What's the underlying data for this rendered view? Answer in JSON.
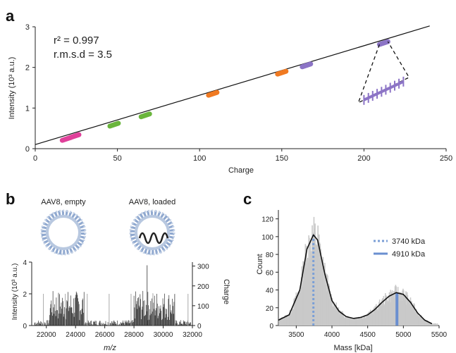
{
  "chart_data": [
    {
      "panel": "a",
      "type": "scatter",
      "xlabel": "Charge",
      "ylabel": "Intensity (10³ a.u.)",
      "xlim": [
        0,
        250
      ],
      "ylim": [
        0,
        3
      ],
      "xticks": [
        0,
        50,
        100,
        150,
        200,
        250
      ],
      "yticks": [
        0,
        1,
        2,
        3
      ],
      "annotations": [
        "r² = 0.997",
        "r.m.s.d = 3.5"
      ],
      "fit_line": {
        "x": [
          0,
          240
        ],
        "y": [
          0.1,
          3.02
        ]
      },
      "series": [
        {
          "color": "#e0409a",
          "points": [
            {
              "x": 19,
              "y": 0.24
            },
            {
              "x": 24,
              "y": 0.31
            }
          ]
        },
        {
          "color": "#6ab53c",
          "points": [
            {
              "x": 48,
              "y": 0.59
            },
            {
              "x": 67,
              "y": 0.82
            }
          ]
        },
        {
          "color": "#f07a22",
          "points": [
            {
              "x": 108,
              "y": 1.35
            },
            {
              "x": 150,
              "y": 1.87
            }
          ]
        },
        {
          "color": "#8c74c6",
          "points": [
            {
              "x": 165,
              "y": 2.05
            },
            {
              "x": 212,
              "y": 2.6
            }
          ]
        }
      ],
      "inset": {
        "color": "#8c74c6",
        "points": [
          {
            "x": 200,
            "y": 1.2
          },
          {
            "x": 202.7,
            "y": 1.25
          },
          {
            "x": 205.3,
            "y": 1.3
          },
          {
            "x": 208,
            "y": 1.35
          },
          {
            "x": 210.7,
            "y": 1.4
          },
          {
            "x": 213.3,
            "y": 1.45
          },
          {
            "x": 216,
            "y": 1.5
          },
          {
            "x": 218.7,
            "y": 1.55
          },
          {
            "x": 221.3,
            "y": 1.6
          },
          {
            "x": 224,
            "y": 1.65
          }
        ]
      }
    },
    {
      "panel": "b",
      "type": "bar",
      "xlabel": "m/z",
      "ylabel_left": "Intensity (10³ a.u.)",
      "ylabel_right": "Charge",
      "xlim": [
        21000,
        32000
      ],
      "ylim": [
        0,
        4
      ],
      "y2lim": [
        0,
        320
      ],
      "xticks": [
        22000,
        24000,
        26000,
        28000,
        30000,
        32000
      ],
      "yticks": [
        0,
        2,
        4
      ],
      "y2ticks": [
        0,
        100,
        200,
        300
      ],
      "labels": [
        "AAV8, empty",
        "AAV8, loaded"
      ]
    },
    {
      "panel": "c",
      "type": "bar",
      "xlabel": "Mass [kDa]",
      "ylabel": "Count",
      "xlim": [
        3250,
        5500
      ],
      "ylim": [
        0,
        130
      ],
      "xticks": [
        3500,
        4000,
        4500,
        5000,
        5500
      ],
      "yticks": [
        0,
        20,
        40,
        60,
        80,
        100,
        120
      ],
      "legend": [
        {
          "label": "3740 kDa",
          "style": "dotted",
          "color": "#7b9fd6",
          "x": 3740
        },
        {
          "label": "4910 kDa",
          "style": "solid",
          "color": "#6a8fd0",
          "x": 4910
        }
      ],
      "fit_curve": {
        "x": [
          3250,
          3400,
          3550,
          3650,
          3740,
          3800,
          3900,
          4000,
          4100,
          4200,
          4300,
          4400,
          4500,
          4600,
          4700,
          4800,
          4900,
          5000,
          5100,
          5200,
          5300,
          5400
        ],
        "y": [
          6,
          12,
          40,
          86,
          102,
          96,
          58,
          28,
          16,
          10,
          8,
          9,
          12,
          18,
          26,
          33,
          37,
          35,
          26,
          14,
          6,
          2
        ]
      }
    }
  ],
  "panel_labels": {
    "a": "a",
    "b": "b",
    "c": "c"
  }
}
